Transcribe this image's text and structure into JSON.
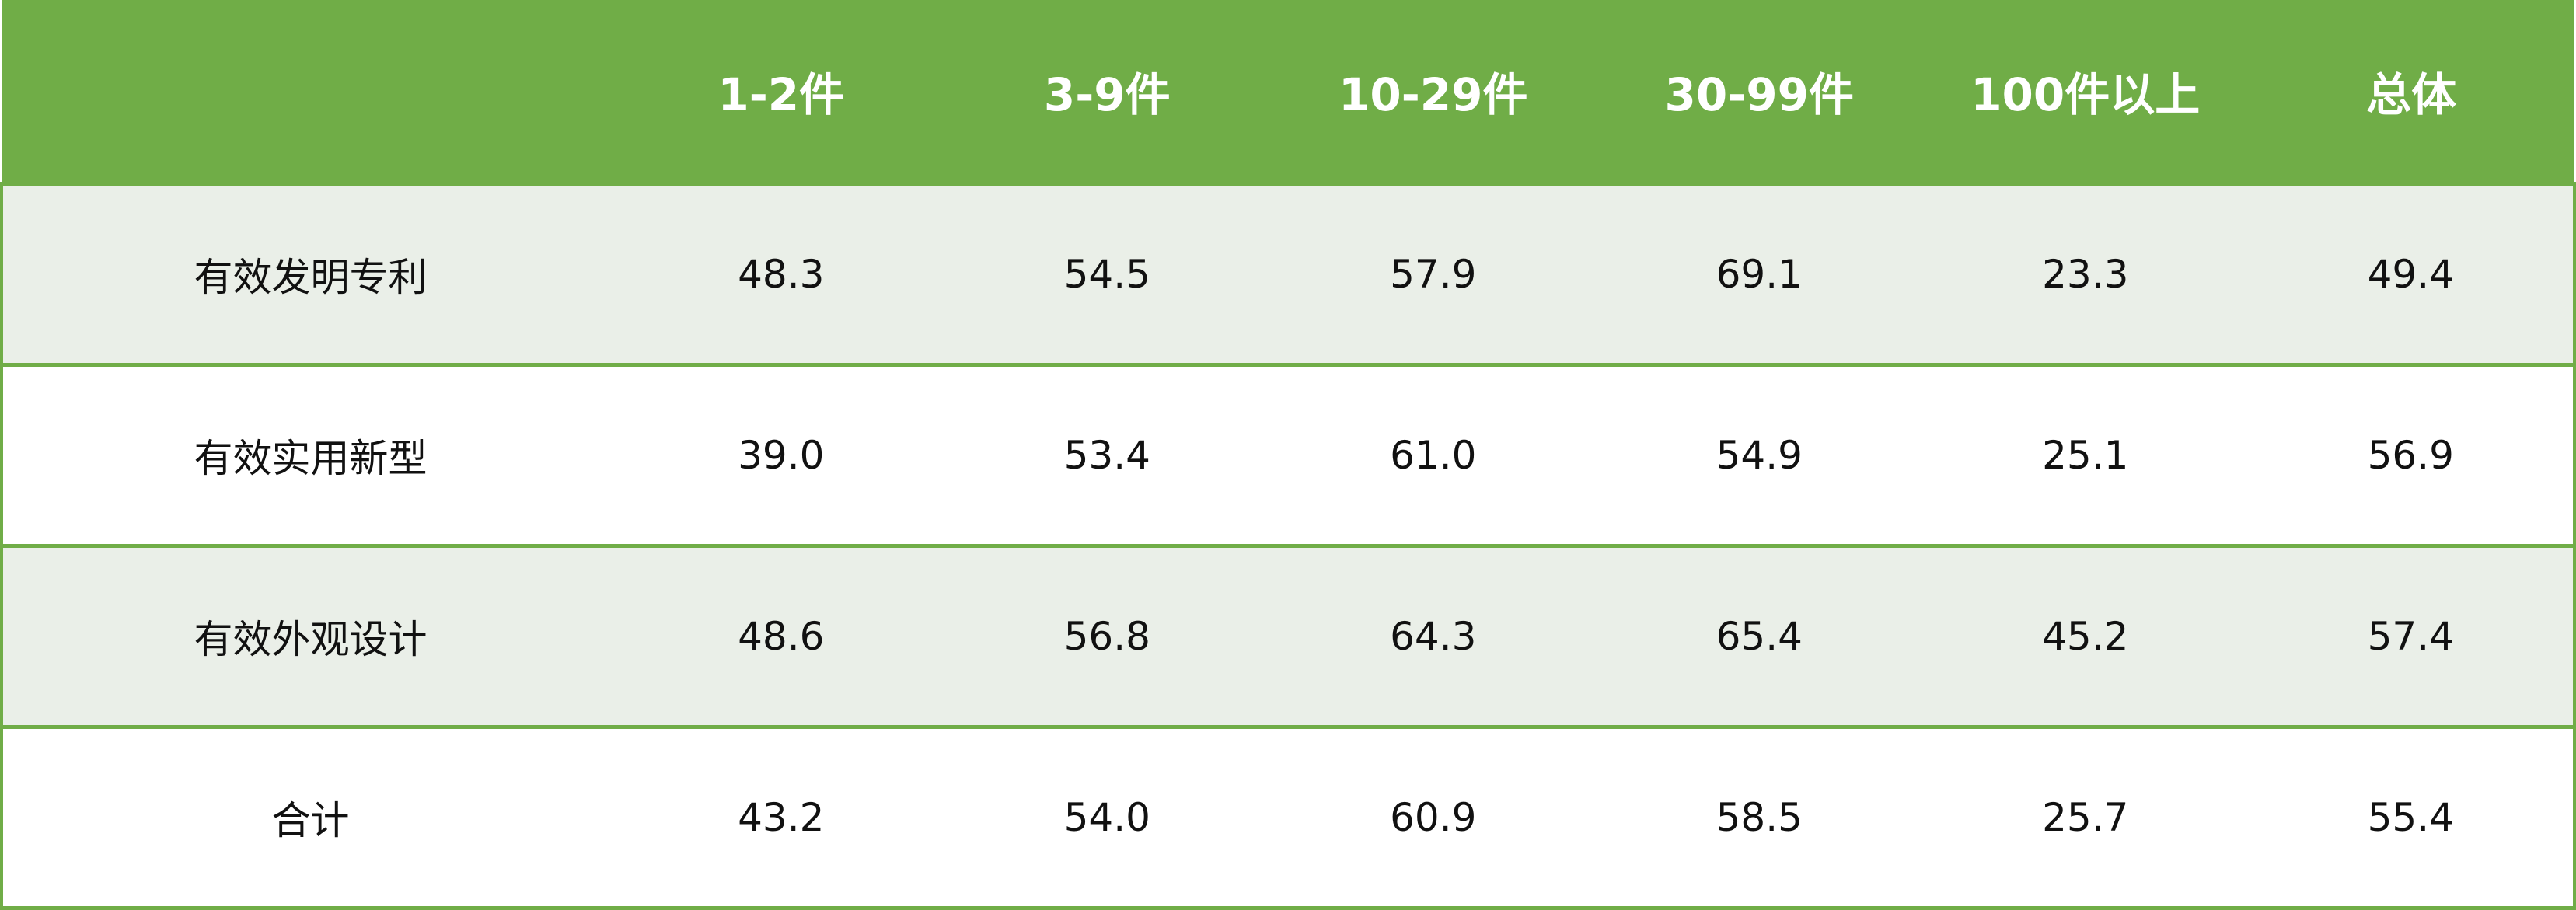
{
  "colors": {
    "header_bg": "#70AD47",
    "shaded_row_bg": "#EAEFE8",
    "border": "#70AD47"
  },
  "table": {
    "headers": [
      "",
      "1-2件",
      "3-9件",
      "10-29件",
      "30-99件",
      "100件以上",
      "总体"
    ],
    "rows": [
      {
        "label": "有效发明专利",
        "values": [
          "48.3",
          "54.5",
          "57.9",
          "69.1",
          "23.3",
          "49.4"
        ]
      },
      {
        "label": "有效实用新型",
        "values": [
          "39.0",
          "53.4",
          "61.0",
          "54.9",
          "25.1",
          "56.9"
        ]
      },
      {
        "label": "有效外观设计",
        "values": [
          "48.6",
          "56.8",
          "64.3",
          "65.4",
          "45.2",
          "57.4"
        ]
      },
      {
        "label": "合计",
        "values": [
          "43.2",
          "54.0",
          "60.9",
          "58.5",
          "25.7",
          "55.4"
        ]
      }
    ]
  }
}
